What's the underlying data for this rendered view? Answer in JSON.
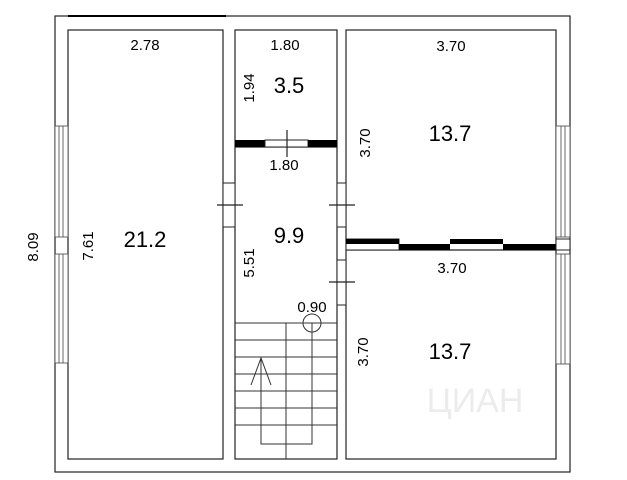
{
  "plan": {
    "rooms": [
      {
        "area": "21.2",
        "width": "2.78",
        "height": "7.61"
      },
      {
        "area": "3.5",
        "width": "1.80",
        "height": "1.94"
      },
      {
        "area": "9.9",
        "width": "1.80",
        "height": "5.51",
        "stair_width": "0.90"
      },
      {
        "area": "13.7",
        "width": "3.70",
        "height": "3.70"
      },
      {
        "area": "13.7",
        "width": "3.70",
        "height": "3.70"
      }
    ],
    "overall_height": "8.09",
    "watermark": "ЦИАН"
  }
}
